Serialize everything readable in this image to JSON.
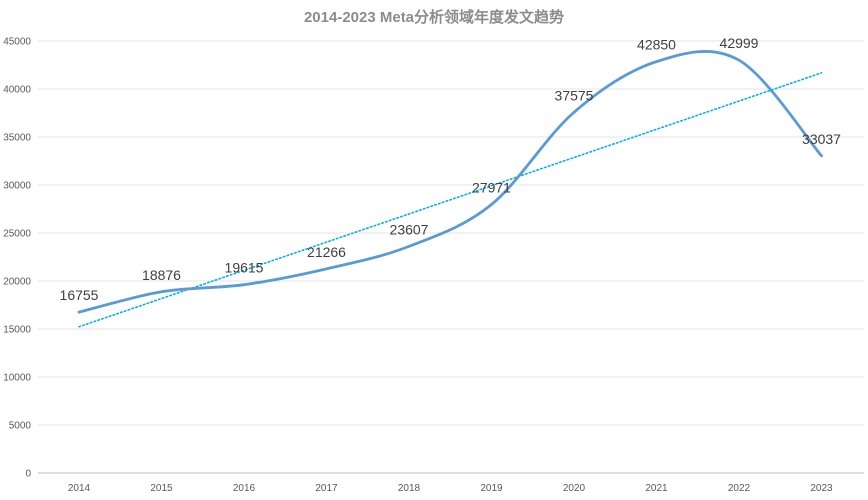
{
  "chart_data": {
    "type": "line",
    "title": "2014-2023 Meta分析领域年度发文趋势",
    "xlabel": "",
    "ylabel": "",
    "categories": [
      "2014",
      "2015",
      "2016",
      "2017",
      "2018",
      "2019",
      "2020",
      "2021",
      "2022",
      "2023"
    ],
    "series": [
      {
        "values": [
          16755,
          18876,
          19615,
          21266,
          23607,
          27971,
          37575,
          42850,
          42999,
          33037
        ],
        "data_labels": [
          "16755",
          "18876",
          "19615",
          "21266",
          "23607",
          "27971",
          "37575",
          "42850",
          "42999",
          "33037"
        ],
        "color": "#5b9bd5",
        "smooth": true
      }
    ],
    "trendline": {
      "type": "linear",
      "style": "dotted",
      "color": "#00b0f0"
    },
    "ylim": [
      0,
      45000
    ],
    "yticks": [
      "0",
      "5000",
      "10000",
      "15000",
      "20000",
      "25000",
      "30000",
      "35000",
      "40000",
      "45000"
    ],
    "grid": true,
    "legend": "none"
  }
}
